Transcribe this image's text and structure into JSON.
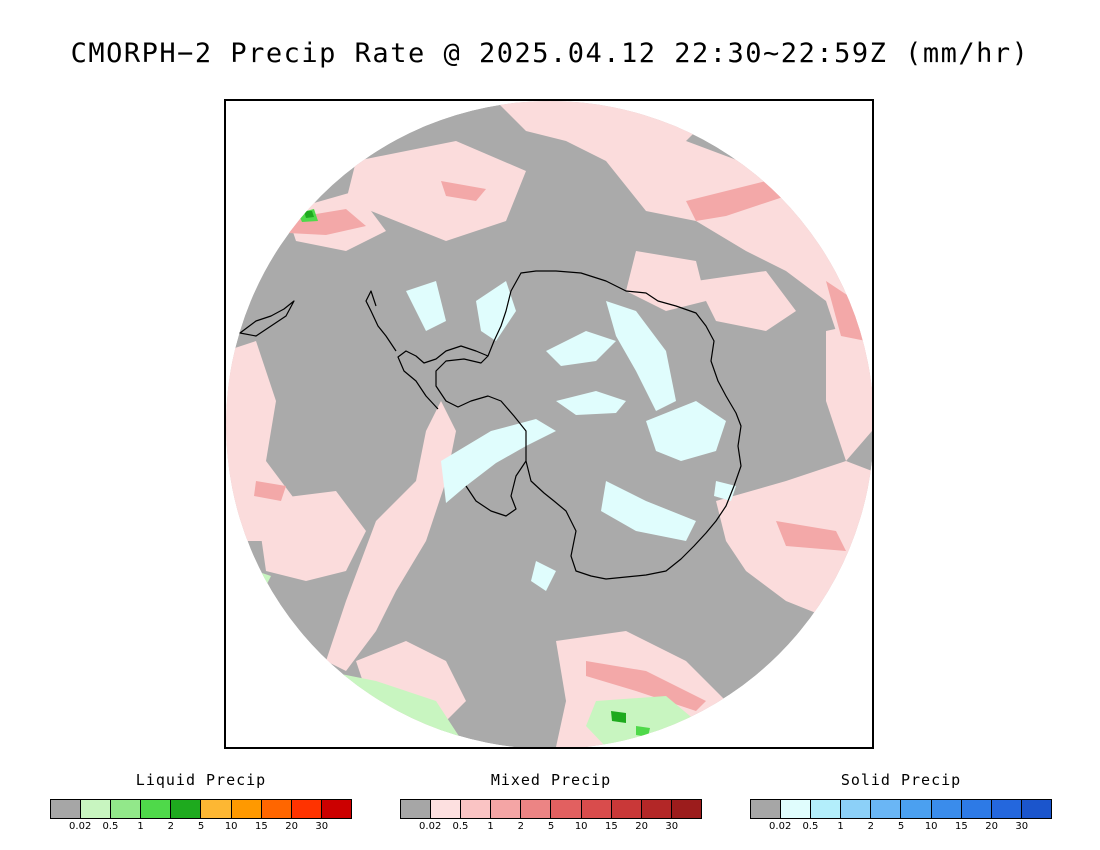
{
  "title": "CMORPH−2 Precip Rate @ 2025.04.12 22:30~22:59Z (mm/hr)",
  "map": {
    "projection": "south-polar-stereographic",
    "colors": {
      "no_data_background": "#ffffff",
      "zero_precip": "#aaaaaa",
      "coastline": "#000000"
    }
  },
  "legends": [
    {
      "title": "Liquid Precip",
      "tick_labels": [
        "0.02",
        "0.5",
        "1",
        "2",
        "5",
        "10",
        "15",
        "20",
        "30"
      ],
      "colors": [
        "#a6a6a6",
        "#c8f5c0",
        "#92e88a",
        "#4fd94a",
        "#1eaa1e",
        "#fdb733",
        "#ff9900",
        "#ff6600",
        "#ff3300",
        "#cc0000"
      ]
    },
    {
      "title": "Mixed Precip",
      "tick_labels": [
        "0.02",
        "0.5",
        "1",
        "2",
        "5",
        "10",
        "15",
        "20",
        "30"
      ],
      "colors": [
        "#a6a6a6",
        "#fde0e0",
        "#fac4c4",
        "#f4a5a5",
        "#ec8484",
        "#e26060",
        "#d94c4c",
        "#c93838",
        "#b32727",
        "#9c1c1c"
      ]
    },
    {
      "title": "Solid Precip",
      "tick_labels": [
        "0.02",
        "0.5",
        "1",
        "2",
        "5",
        "10",
        "15",
        "20",
        "30"
      ],
      "colors": [
        "#a6a6a6",
        "#e0fdfd",
        "#b3eefb",
        "#8cd0f8",
        "#6ab6f5",
        "#4ba0f0",
        "#3a8ceb",
        "#2d7ae6",
        "#2467dd",
        "#1b55cc"
      ]
    }
  ]
}
